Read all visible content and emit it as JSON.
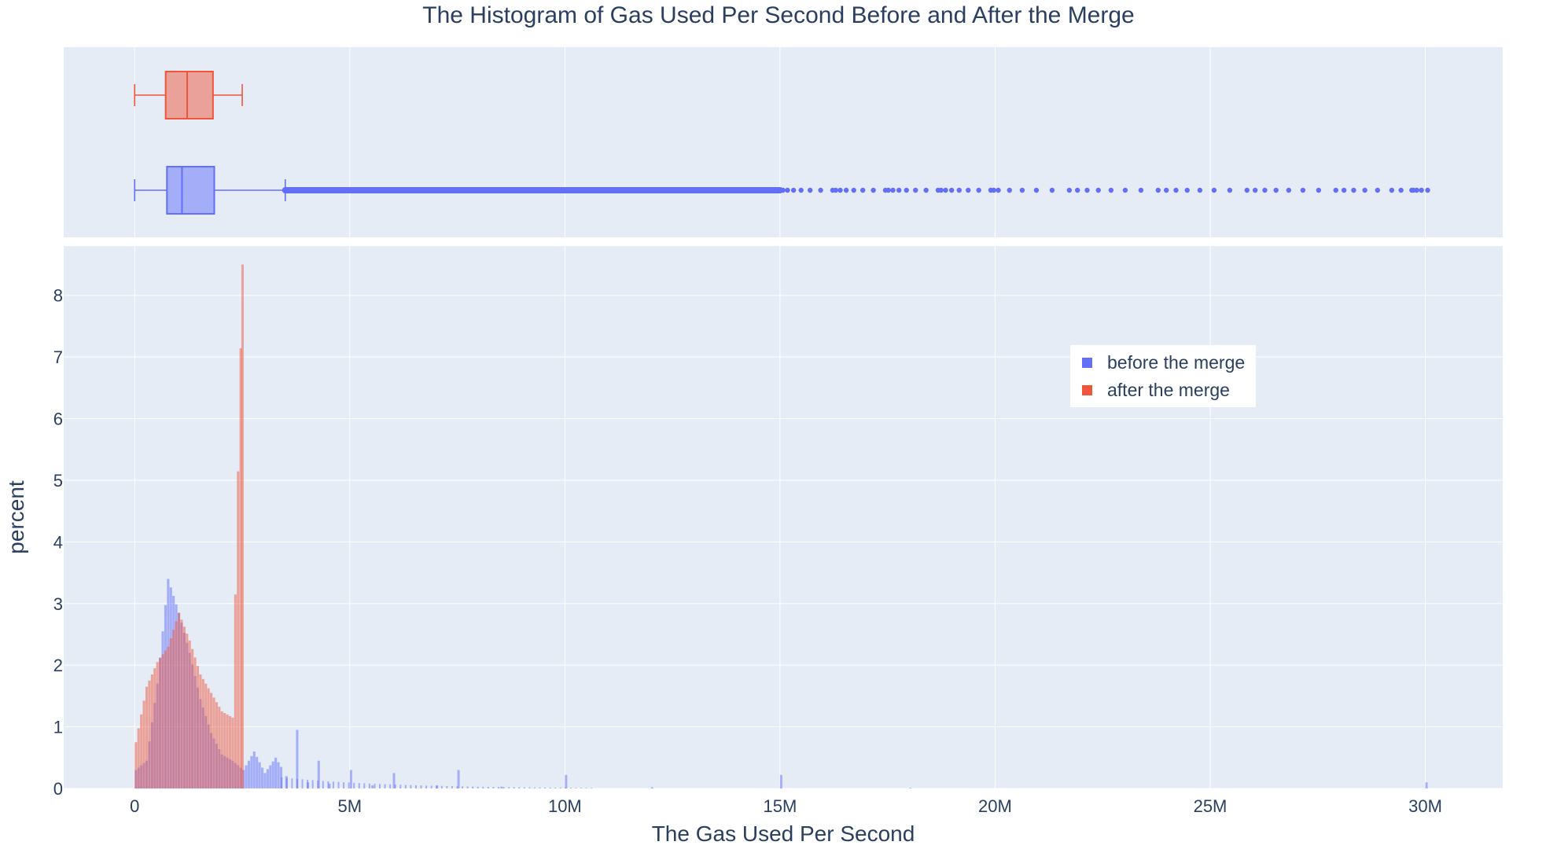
{
  "chart_data": {
    "type": "histogram",
    "title": "The Histogram of Gas Used Per Second Before and After the Merge",
    "xlabel": "The Gas Used Per Second",
    "ylabel": "percent",
    "xlim": [
      -1650000,
      31800000
    ],
    "ylim": [
      0,
      8.8
    ],
    "x_ticks": [
      {
        "value": 0,
        "label": "0"
      },
      {
        "value": 5000000,
        "label": "5M"
      },
      {
        "value": 10000000,
        "label": "10M"
      },
      {
        "value": 15000000,
        "label": "15M"
      },
      {
        "value": 20000000,
        "label": "20M"
      },
      {
        "value": 25000000,
        "label": "25M"
      },
      {
        "value": 30000000,
        "label": "30M"
      }
    ],
    "y_ticks": [
      0,
      1,
      2,
      3,
      4,
      5,
      6,
      7,
      8
    ],
    "grid": true,
    "legend_position": "upper-right-inside",
    "colors": {
      "before": "#636efa",
      "after": "#ef553b",
      "plot_bg": "#e5ecf6",
      "grid": "#ffffff",
      "text": "#2a3f5f"
    },
    "series": [
      {
        "name": "before the merge",
        "key": "before",
        "box": {
          "min": 0,
          "q1": 750000,
          "median": 1100000,
          "q3": 1850000,
          "upper_fence": 3500000,
          "outliers_from": 3500000,
          "outliers_to": 30100000
        },
        "bins": [
          [
            0,
            0.3
          ],
          [
            250000,
            0.45
          ],
          [
            500000,
            1.7
          ],
          [
            750000,
            3.4
          ],
          [
            1000000,
            2.85
          ],
          [
            1250000,
            2.2
          ],
          [
            1500000,
            1.45
          ],
          [
            1750000,
            0.9
          ],
          [
            2000000,
            0.55
          ],
          [
            2250000,
            0.45
          ],
          [
            2500000,
            0.3
          ],
          [
            2750000,
            0.6
          ],
          [
            3000000,
            0.25
          ],
          [
            3250000,
            0.5
          ],
          [
            3500000,
            0.2
          ],
          [
            3750000,
            0.95
          ],
          [
            4000000,
            0.1
          ],
          [
            4250000,
            0.45
          ],
          [
            4500000,
            0.08
          ],
          [
            5000000,
            0.3
          ],
          [
            5500000,
            0.05
          ],
          [
            6000000,
            0.25
          ],
          [
            7000000,
            0.05
          ],
          [
            7500000,
            0.3
          ],
          [
            8500000,
            0.03
          ],
          [
            10000000,
            0.22
          ],
          [
            12000000,
            0.02
          ],
          [
            15000000,
            0.22
          ],
          [
            18000000,
            0.01
          ],
          [
            30000000,
            0.1
          ]
        ]
      },
      {
        "name": "after the merge",
        "key": "after",
        "box": {
          "min": 0,
          "q1": 720000,
          "median": 1220000,
          "q3": 1820000,
          "upper_fence": 2500000
        },
        "bins": [
          [
            0,
            0.75
          ],
          [
            250000,
            1.65
          ],
          [
            500000,
            2.05
          ],
          [
            750000,
            2.3
          ],
          [
            1000000,
            2.85
          ],
          [
            1250000,
            2.4
          ],
          [
            1500000,
            1.85
          ],
          [
            1750000,
            1.55
          ],
          [
            2000000,
            1.25
          ],
          [
            2250000,
            1.15
          ],
          [
            2480000,
            8.5
          ]
        ]
      }
    ]
  }
}
